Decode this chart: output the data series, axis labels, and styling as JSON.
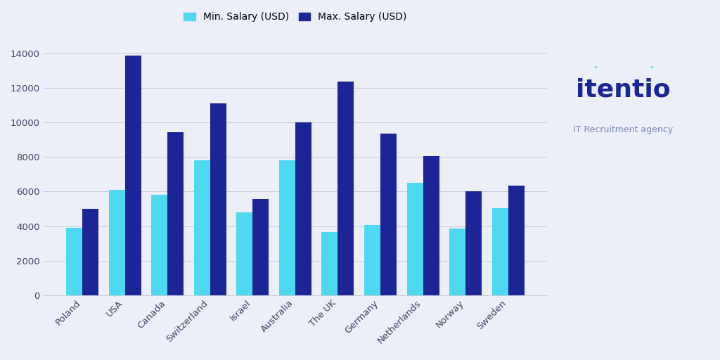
{
  "categories": [
    "Poland",
    "USA",
    "Canada",
    "Switzerland",
    "Israel",
    "Australia",
    "The UK",
    "Germany",
    "Netherlands",
    "Norway",
    "Sweden"
  ],
  "min_salary": [
    3900,
    6100,
    5800,
    7800,
    4800,
    7800,
    3650,
    4050,
    6500,
    3850,
    5050
  ],
  "max_salary": [
    5000,
    13850,
    9450,
    11100,
    5550,
    10000,
    12350,
    9350,
    8050,
    6000,
    6350
  ],
  "min_color": "#4dd9f0",
  "max_color": "#1c2596",
  "background_color": "#eceef8",
  "plot_background": "#eceef8",
  "ylim": [
    0,
    15000
  ],
  "yticks": [
    0,
    2000,
    4000,
    6000,
    8000,
    10000,
    12000,
    14000
  ],
  "legend_min_label": "Min. Salary (USD)",
  "legend_max_label": "Max. Salary (USD)",
  "bar_width": 0.38,
  "grid_color": "#c8cad8",
  "tick_color": "#444466",
  "logo_text_main": "itentio",
  "logo_text_sub": "IT Recruitment agency",
  "logo_main_color": "#1c2596",
  "logo_sub_color": "#7a8ab0"
}
